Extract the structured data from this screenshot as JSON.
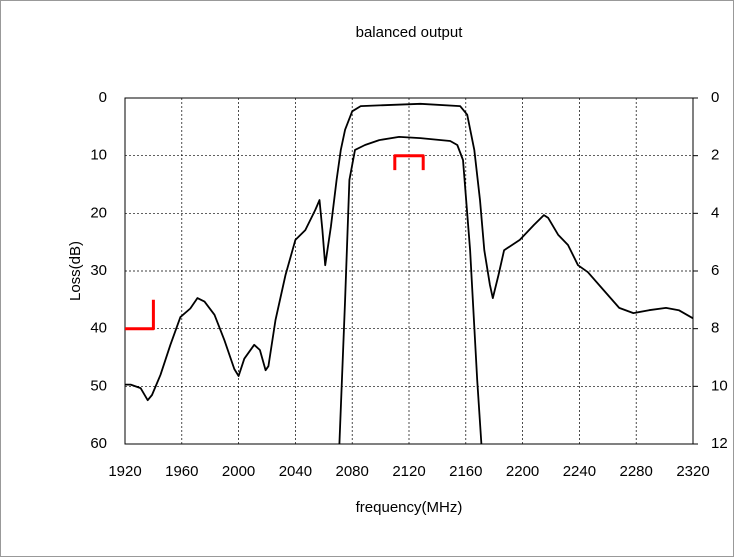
{
  "chart_data": {
    "type": "line",
    "title": "balanced output",
    "xlabel": "frequency(MHz)",
    "ylabel": "Loss(dB)",
    "xlim": [
      1920,
      2320
    ],
    "xticks": [
      1920,
      1960,
      2000,
      2040,
      2080,
      2120,
      2160,
      2200,
      2240,
      2280,
      2320
    ],
    "ylim": [
      0,
      60
    ],
    "yticks": [
      0,
      10,
      20,
      30,
      40,
      50,
      60
    ],
    "y_inverted": true,
    "y2lim": [
      0,
      12
    ],
    "y2ticks": [
      0,
      2,
      4,
      6,
      8,
      10,
      12
    ],
    "grid": true,
    "series": [
      {
        "color": "#000000",
        "x": [
          1920,
          1924,
          1931,
          1936,
          1939,
          1945,
          1952,
          1959,
          1966,
          1971,
          1976,
          1983,
          1990,
          1997,
          2000,
          2004,
          2011,
          2015,
          2019,
          2021,
          2026,
          2033,
          2040,
          2047,
          2054,
          2057,
          2059,
          2061,
          2065,
          2069,
          2072,
          2075,
          2080,
          2086,
          2128,
          2156,
          2161,
          2166,
          2170,
          2173,
          2177,
          2179,
          2183,
          2187,
          2198,
          2208,
          2215,
          2218,
          2225,
          2232,
          2239,
          2246,
          2257,
          2268,
          2278,
          2289,
          2301,
          2310,
          2320
        ],
        "values": [
          49.7,
          49.7,
          50.3,
          52.4,
          51.5,
          48,
          42.8,
          38,
          36.5,
          34.7,
          35.3,
          37.6,
          42,
          47,
          48.2,
          45.2,
          42.8,
          43.7,
          47.2,
          46.5,
          38.5,
          30.7,
          24.6,
          22.9,
          19.4,
          17.7,
          22.9,
          29,
          22.3,
          14.2,
          9,
          5.5,
          2.3,
          1.4,
          1.0,
          1.4,
          2.9,
          9,
          17.7,
          26.4,
          32.4,
          34.7,
          30.7,
          26.4,
          24.6,
          22,
          20.3,
          20.8,
          23.7,
          25.5,
          29,
          30.2,
          33.3,
          36.4,
          37.3,
          36.8,
          36.4,
          36.8,
          38.2
        ]
      },
      {
        "color": "#000000",
        "axis": "y2",
        "x": [
          2071,
          2075,
          2078,
          2082,
          2089,
          2099,
          2113,
          2128,
          2149,
          2154,
          2158,
          2163,
          2168,
          2171
        ],
        "values": [
          12,
          7.0,
          2.84,
          1.8,
          1.63,
          1.46,
          1.35,
          1.39,
          1.49,
          1.63,
          2.15,
          5.27,
          9.78,
          12
        ]
      },
      {
        "color": "#ff0000",
        "x": [
          1920,
          1940,
          1940
        ],
        "values": [
          40,
          40,
          35
        ]
      },
      {
        "color": "#ff0000",
        "axis": "y2",
        "x": [
          2110,
          2110,
          2130,
          2130
        ],
        "values": [
          2.5,
          2,
          2,
          2.5
        ]
      }
    ]
  }
}
